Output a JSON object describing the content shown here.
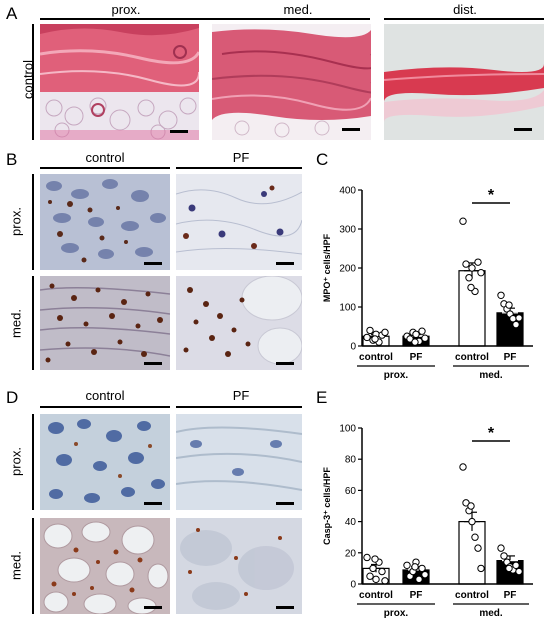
{
  "panel_letters": {
    "a": "A",
    "b": "B",
    "c": "C",
    "d": "D",
    "e": "E"
  },
  "panel_a": {
    "columns": [
      "prox.",
      "med.",
      "dist."
    ],
    "row_label": "control"
  },
  "panel_b": {
    "columns": [
      "control",
      "PF"
    ],
    "rows": [
      "prox.",
      "med."
    ]
  },
  "panel_d": {
    "columns": [
      "control",
      "PF"
    ],
    "rows": [
      "prox.",
      "med."
    ]
  },
  "chart_data": [
    {
      "panel": "C",
      "type": "bar",
      "ylabel": "MPO⁺ cells/HPF",
      "ylim": [
        0,
        400
      ],
      "yticks": [
        "0",
        "100",
        "200",
        "300",
        "400"
      ],
      "categories": [
        "control",
        "PF",
        "control",
        "PF"
      ],
      "groups": [
        "prox.",
        "med."
      ],
      "bar_fill": [
        "#ffffff",
        "#000000",
        "#ffffff",
        "#000000"
      ],
      "values": [
        25,
        25,
        193,
        85
      ],
      "sem": [
        5,
        5,
        20,
        12
      ],
      "points": [
        [
          22,
          40,
          15,
          30,
          10,
          28,
          35,
          18
        ],
        [
          25,
          18,
          35,
          30,
          12,
          38,
          20,
          10
        ],
        [
          320,
          210,
          175,
          200,
          140,
          215,
          188,
          150
        ],
        [
          130,
          108,
          95,
          82,
          70,
          55,
          72,
          105
        ]
      ],
      "significance": {
        "pair": [
          2,
          3
        ],
        "label": "*"
      }
    },
    {
      "panel": "E",
      "type": "bar",
      "ylabel": "Casp-3⁺ cells/HPF",
      "ylim": [
        0,
        100
      ],
      "yticks": [
        "0",
        "20",
        "40",
        "60",
        "80",
        "100"
      ],
      "categories": [
        "control",
        "PF",
        "control",
        "PF"
      ],
      "groups": [
        "prox.",
        "med."
      ],
      "bar_fill": [
        "#ffffff",
        "#000000",
        "#ffffff",
        "#000000"
      ],
      "values": [
        10,
        9,
        40,
        15
      ],
      "sem": [
        2.5,
        2,
        6,
        3
      ],
      "points": [
        [
          17,
          5,
          10,
          3,
          14,
          8,
          2,
          16
        ],
        [
          12,
          5,
          8,
          14,
          3,
          10,
          6,
          11
        ],
        [
          75,
          52,
          47,
          40,
          30,
          23,
          10,
          50
        ],
        [
          23,
          18,
          14,
          11,
          9,
          12,
          8,
          10
        ]
      ],
      "significance": {
        "pair": [
          2,
          3
        ],
        "label": "*"
      }
    }
  ]
}
